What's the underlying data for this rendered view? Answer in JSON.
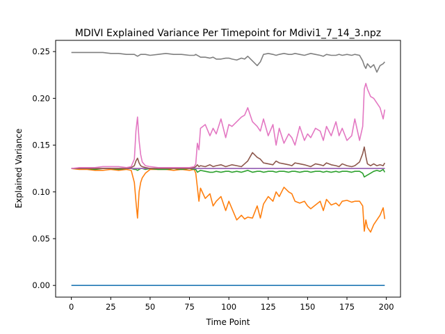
{
  "chart_data": {
    "type": "line",
    "title": "MDIVI Explained Variance Per Timepoint for Mdivi1_7_14_3.npz",
    "xlabel": "Time Point",
    "ylabel": "Explained Variance",
    "xlim": [
      -10,
      209
    ],
    "ylim": [
      -0.0125,
      0.262
    ],
    "grid": false,
    "x_ticks": [
      0,
      25,
      50,
      75,
      100,
      125,
      150,
      175,
      200
    ],
    "y_ticks": [
      0.0,
      0.05,
      0.1,
      0.15,
      0.2,
      0.25
    ],
    "x_tick_labels": [
      "0",
      "25",
      "50",
      "75",
      "100",
      "125",
      "150",
      "175",
      "200"
    ],
    "y_tick_labels": [
      "0.00",
      "0.05",
      "0.10",
      "0.15",
      "0.20",
      "0.25"
    ],
    "x": [
      0,
      5,
      10,
      15,
      20,
      25,
      30,
      35,
      38,
      40,
      41,
      42,
      43,
      44,
      45,
      47,
      50,
      55,
      60,
      65,
      70,
      75,
      78,
      79,
      80,
      81,
      82,
      85,
      88,
      90,
      92,
      95,
      98,
      100,
      102,
      105,
      108,
      110,
      112,
      115,
      118,
      120,
      122,
      125,
      128,
      130,
      132,
      135,
      138,
      140,
      142,
      145,
      148,
      150,
      152,
      155,
      158,
      160,
      162,
      165,
      168,
      170,
      172,
      175,
      178,
      180,
      183,
      185,
      186,
      187,
      188,
      190,
      192,
      194,
      196,
      198,
      199
    ],
    "series": [
      {
        "color": "#1f77b4",
        "values": [
          0,
          0,
          0,
          0,
          0,
          0,
          0,
          0,
          0,
          0,
          0,
          0,
          0,
          0,
          0,
          0,
          0,
          0,
          0,
          0,
          0,
          0,
          0,
          0,
          0,
          0,
          0,
          0,
          0,
          0,
          0,
          0,
          0,
          0,
          0,
          0,
          0,
          0,
          0,
          0,
          0,
          0,
          0,
          0,
          0,
          0,
          0,
          0,
          0,
          0,
          0,
          0,
          0,
          0,
          0,
          0,
          0,
          0,
          0,
          0,
          0,
          0,
          0,
          0,
          0,
          0,
          0,
          0,
          0,
          0,
          0,
          0,
          0,
          0,
          0,
          0,
          0
        ]
      },
      {
        "color": "#ff7f0e",
        "values": [
          0.125,
          0.124,
          0.124,
          0.123,
          0.123,
          0.124,
          0.123,
          0.124,
          0.123,
          0.11,
          0.09,
          0.072,
          0.1,
          0.11,
          0.115,
          0.12,
          0.124,
          0.124,
          0.124,
          0.123,
          0.124,
          0.123,
          0.124,
          0.12,
          0.105,
          0.09,
          0.104,
          0.093,
          0.098,
          0.085,
          0.09,
          0.095,
          0.08,
          0.09,
          0.082,
          0.07,
          0.075,
          0.071,
          0.073,
          0.072,
          0.085,
          0.072,
          0.087,
          0.095,
          0.09,
          0.1,
          0.095,
          0.105,
          0.1,
          0.098,
          0.09,
          0.088,
          0.09,
          0.085,
          0.082,
          0.086,
          0.09,
          0.08,
          0.092,
          0.086,
          0.088,
          0.085,
          0.09,
          0.091,
          0.089,
          0.09,
          0.09,
          0.085,
          0.058,
          0.07,
          0.062,
          0.057,
          0.065,
          0.07,
          0.075,
          0.083,
          0.071
        ]
      },
      {
        "color": "#2ca02c",
        "values": [
          0.125,
          0.125,
          0.125,
          0.124,
          0.125,
          0.125,
          0.124,
          0.125,
          0.125,
          0.124,
          0.124,
          0.123,
          0.124,
          0.125,
          0.125,
          0.124,
          0.125,
          0.124,
          0.124,
          0.125,
          0.124,
          0.125,
          0.124,
          0.124,
          0.121,
          0.122,
          0.123,
          0.122,
          0.121,
          0.121,
          0.122,
          0.121,
          0.122,
          0.122,
          0.121,
          0.122,
          0.121,
          0.122,
          0.123,
          0.121,
          0.122,
          0.122,
          0.121,
          0.122,
          0.122,
          0.121,
          0.122,
          0.122,
          0.121,
          0.122,
          0.122,
          0.121,
          0.122,
          0.122,
          0.121,
          0.122,
          0.122,
          0.121,
          0.122,
          0.121,
          0.122,
          0.121,
          0.122,
          0.122,
          0.121,
          0.122,
          0.122,
          0.12,
          0.116,
          0.117,
          0.118,
          0.12,
          0.122,
          0.123,
          0.122,
          0.124,
          0.121
        ]
      },
      {
        "color": "#d62728",
        "values": [
          0.125,
          0.125,
          0.125,
          0.125,
          0.125,
          0.125,
          0.125,
          0.125,
          0.125,
          0.125,
          0.125,
          0.125,
          0.125,
          0.125,
          0.125,
          0.125,
          0.125,
          0.125,
          0.125,
          0.125,
          0.125,
          0.125,
          0.125,
          0.125,
          0.125,
          0.125,
          0.125,
          0.125,
          0.125,
          0.125,
          0.125,
          0.125,
          0.125,
          0.125,
          0.125,
          0.125,
          0.125,
          0.125,
          0.125,
          0.125,
          0.125,
          0.125,
          0.125,
          0.125,
          0.125,
          0.125,
          0.125,
          0.125,
          0.125,
          0.125,
          0.125,
          0.125,
          0.125,
          0.125,
          0.125,
          0.125,
          0.125,
          0.125,
          0.125,
          0.125,
          0.125,
          0.125,
          0.125,
          0.125,
          0.125,
          0.125,
          0.125,
          0.125,
          0.125,
          0.125,
          0.125,
          0.125,
          0.125,
          0.125,
          0.125,
          0.125,
          0.125
        ]
      },
      {
        "color": "#9467bd",
        "values": [
          0.125,
          0.125,
          0.125,
          0.125,
          0.125,
          0.125,
          0.125,
          0.125,
          0.125,
          0.125,
          0.125,
          0.125,
          0.125,
          0.125,
          0.125,
          0.125,
          0.125,
          0.125,
          0.125,
          0.125,
          0.125,
          0.125,
          0.125,
          0.125,
          0.125,
          0.125,
          0.125,
          0.125,
          0.125,
          0.125,
          0.125,
          0.125,
          0.125,
          0.125,
          0.125,
          0.125,
          0.125,
          0.125,
          0.125,
          0.125,
          0.125,
          0.125,
          0.125,
          0.125,
          0.125,
          0.125,
          0.125,
          0.125,
          0.125,
          0.125,
          0.125,
          0.125,
          0.125,
          0.125,
          0.125,
          0.125,
          0.125,
          0.125,
          0.125,
          0.125,
          0.125,
          0.125,
          0.125,
          0.125,
          0.125,
          0.125,
          0.125,
          0.125,
          0.125,
          0.125,
          0.125,
          0.125,
          0.125,
          0.125,
          0.125,
          0.125,
          0.125
        ]
      },
      {
        "color": "#8c564b",
        "values": [
          0.125,
          0.125,
          0.125,
          0.125,
          0.125,
          0.125,
          0.125,
          0.125,
          0.126,
          0.128,
          0.133,
          0.136,
          0.131,
          0.128,
          0.127,
          0.126,
          0.125,
          0.125,
          0.125,
          0.125,
          0.125,
          0.125,
          0.126,
          0.127,
          0.129,
          0.127,
          0.128,
          0.127,
          0.129,
          0.127,
          0.128,
          0.129,
          0.127,
          0.128,
          0.129,
          0.128,
          0.127,
          0.13,
          0.133,
          0.142,
          0.137,
          0.135,
          0.131,
          0.13,
          0.129,
          0.133,
          0.131,
          0.13,
          0.129,
          0.128,
          0.131,
          0.13,
          0.129,
          0.128,
          0.127,
          0.13,
          0.129,
          0.128,
          0.131,
          0.129,
          0.128,
          0.127,
          0.13,
          0.128,
          0.127,
          0.128,
          0.132,
          0.141,
          0.148,
          0.138,
          0.13,
          0.128,
          0.13,
          0.128,
          0.129,
          0.128,
          0.131
        ]
      },
      {
        "color": "#e377c2",
        "values": [
          0.125,
          0.126,
          0.126,
          0.126,
          0.127,
          0.127,
          0.127,
          0.126,
          0.127,
          0.135,
          0.165,
          0.18,
          0.155,
          0.14,
          0.132,
          0.128,
          0.127,
          0.126,
          0.126,
          0.126,
          0.126,
          0.126,
          0.127,
          0.13,
          0.152,
          0.145,
          0.168,
          0.172,
          0.16,
          0.168,
          0.162,
          0.178,
          0.158,
          0.172,
          0.17,
          0.175,
          0.18,
          0.182,
          0.19,
          0.175,
          0.17,
          0.165,
          0.178,
          0.16,
          0.172,
          0.15,
          0.168,
          0.152,
          0.162,
          0.158,
          0.15,
          0.17,
          0.155,
          0.162,
          0.158,
          0.168,
          0.165,
          0.155,
          0.17,
          0.16,
          0.175,
          0.16,
          0.168,
          0.155,
          0.16,
          0.178,
          0.155,
          0.17,
          0.21,
          0.216,
          0.21,
          0.202,
          0.2,
          0.195,
          0.19,
          0.178,
          0.188
        ]
      },
      {
        "color": "#7f7f7f",
        "values": [
          0.249,
          0.249,
          0.249,
          0.249,
          0.249,
          0.248,
          0.248,
          0.247,
          0.247,
          0.247,
          0.246,
          0.245,
          0.246,
          0.247,
          0.247,
          0.247,
          0.246,
          0.247,
          0.248,
          0.247,
          0.247,
          0.246,
          0.246,
          0.247,
          0.246,
          0.245,
          0.244,
          0.244,
          0.243,
          0.244,
          0.242,
          0.242,
          0.243,
          0.243,
          0.242,
          0.241,
          0.243,
          0.242,
          0.245,
          0.24,
          0.235,
          0.239,
          0.247,
          0.248,
          0.247,
          0.246,
          0.247,
          0.248,
          0.247,
          0.247,
          0.248,
          0.247,
          0.246,
          0.247,
          0.248,
          0.247,
          0.246,
          0.245,
          0.247,
          0.246,
          0.246,
          0.247,
          0.246,
          0.247,
          0.246,
          0.247,
          0.246,
          0.24,
          0.235,
          0.232,
          0.237,
          0.233,
          0.236,
          0.228,
          0.235,
          0.237,
          0.239
        ]
      }
    ]
  }
}
